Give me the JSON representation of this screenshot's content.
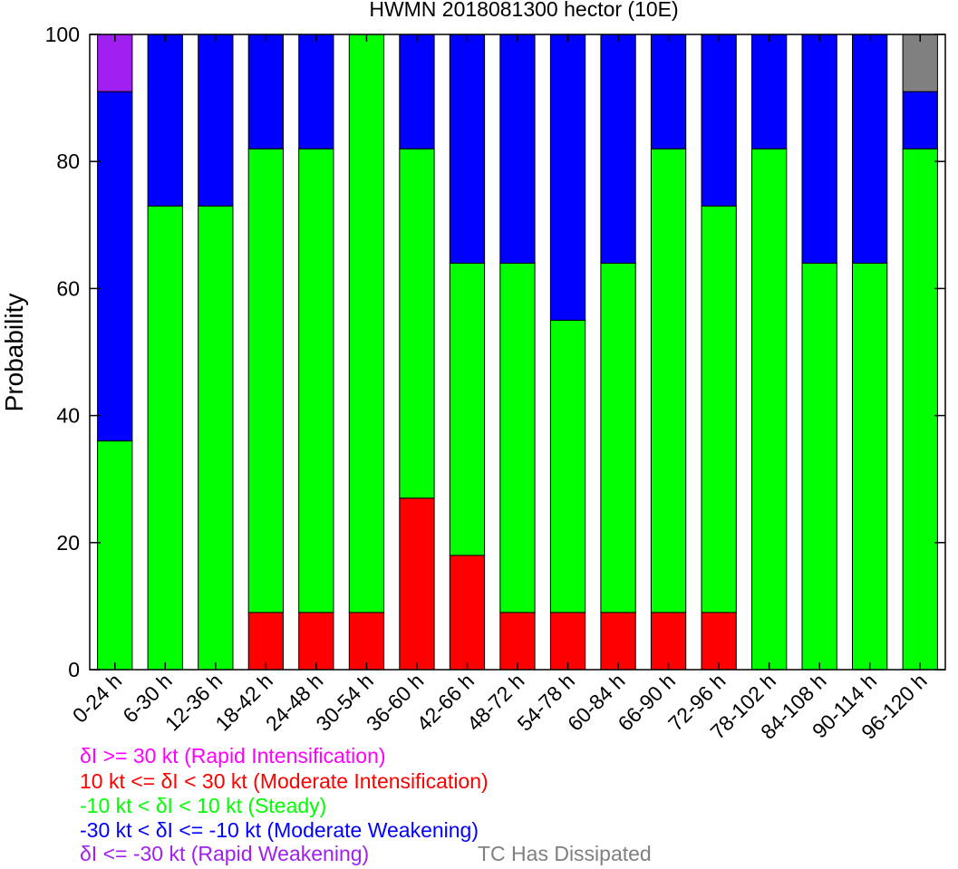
{
  "chart_data": {
    "type": "bar",
    "stacked": true,
    "title": "HWMN 2018081300 hector (10E)",
    "xlabel": "",
    "ylabel": "Probability",
    "ylim": [
      0,
      100
    ],
    "yticks": [
      0,
      20,
      40,
      60,
      80,
      100
    ],
    "grid": false,
    "categories": [
      "0-24 h",
      "6-30 h",
      "12-36 h",
      "18-42 h",
      "24-48 h",
      "30-54 h",
      "36-60 h",
      "42-66 h",
      "48-72 h",
      "54-78 h",
      "60-84 h",
      "66-90 h",
      "72-96 h",
      "78-102 h",
      "84-108 h",
      "90-114 h",
      "96-120 h"
    ],
    "series": [
      {
        "key": "rapid_intensification",
        "color": "#ff00ff",
        "values": [
          0,
          0,
          0,
          0,
          0,
          0,
          0,
          0,
          0,
          0,
          0,
          0,
          0,
          0,
          0,
          0,
          0
        ]
      },
      {
        "key": "moderate_intensification",
        "color": "#ff0000",
        "values": [
          0,
          0,
          0,
          9,
          9,
          9,
          27,
          18,
          9,
          9,
          9,
          9,
          9,
          0,
          0,
          0,
          0
        ]
      },
      {
        "key": "steady",
        "color": "#00ff00",
        "values": [
          36,
          73,
          73,
          73,
          73,
          91,
          55,
          46,
          55,
          46,
          55,
          73,
          64,
          82,
          64,
          64,
          82
        ]
      },
      {
        "key": "moderate_weakening",
        "color": "#0000ff",
        "values": [
          55,
          27,
          27,
          18,
          18,
          0,
          18,
          36,
          36,
          45,
          36,
          18,
          27,
          18,
          36,
          36,
          9
        ]
      },
      {
        "key": "rapid_weakening",
        "color": "#a020f0",
        "values": [
          9,
          0,
          0,
          0,
          0,
          0,
          0,
          0,
          0,
          0,
          0,
          0,
          0,
          0,
          0,
          0,
          0
        ]
      },
      {
        "key": "dissipated",
        "color": "#808080",
        "values": [
          0,
          0,
          0,
          0,
          0,
          0,
          0,
          0,
          0,
          0,
          0,
          0,
          0,
          0,
          0,
          0,
          9
        ]
      }
    ]
  },
  "legend": {
    "rapid_intensification": "δI >= 30 kt (Rapid Intensification)",
    "moderate_intensification": "10 kt <= δI < 30 kt (Moderate Intensification)",
    "steady": "-10 kt < δI < 10 kt (Steady)",
    "moderate_weakening": "-30 kt < δI <= -10 kt (Moderate Weakening)",
    "rapid_weakening": "δI <= -30 kt (Rapid Weakening)",
    "dissipated": "TC Has Dissipated"
  },
  "colors": {
    "rapid_intensification_text": "#ff00ff",
    "moderate_intensification_text": "#ff0000",
    "steady_text": "#00ff00",
    "moderate_weakening_text": "#0000ff",
    "rapid_weakening_text": "#a020f0",
    "dissipated_text": "#808080"
  }
}
